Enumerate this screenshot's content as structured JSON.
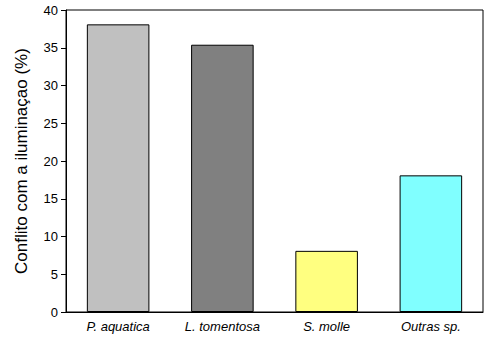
{
  "chart_data": {
    "type": "bar",
    "y_label": "Conflito com a iluminaçao (%)",
    "categories": [
      "P. aquatica",
      "L. tomentosa",
      "S. molle",
      "Outras sp."
    ],
    "values": [
      38.1,
      35.4,
      8.1,
      18.1
    ],
    "colors": [
      "#c0c0c0",
      "#808080",
      "#ffff80",
      "#80ffff"
    ],
    "ylim": [
      0,
      40
    ],
    "yticks": [
      0,
      5,
      10,
      15,
      20,
      25,
      30,
      35,
      40
    ],
    "grid": false
  }
}
